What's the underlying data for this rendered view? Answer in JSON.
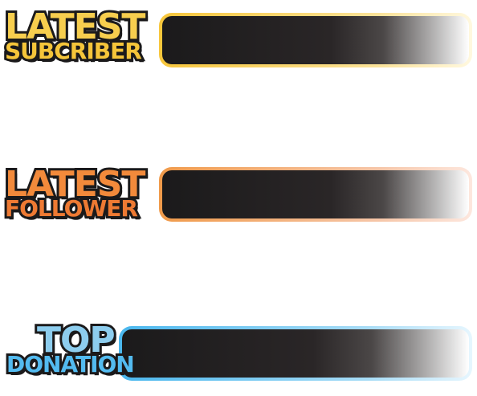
{
  "panels": [
    {
      "title_top": "LATEST",
      "title_bottom": "SUBCRIBER",
      "accent": "#f7c63b"
    },
    {
      "title_top": "LATEST",
      "title_bottom": "FOLLOWER",
      "accent": "#f28a3b"
    },
    {
      "title_top": "TOP",
      "title_bottom": "DONATION",
      "accent": "#4ab7ee"
    }
  ],
  "colors": {
    "bar_fill": "#1b1a1b",
    "outline": "#1b1a1b",
    "background": "#ffffff"
  }
}
